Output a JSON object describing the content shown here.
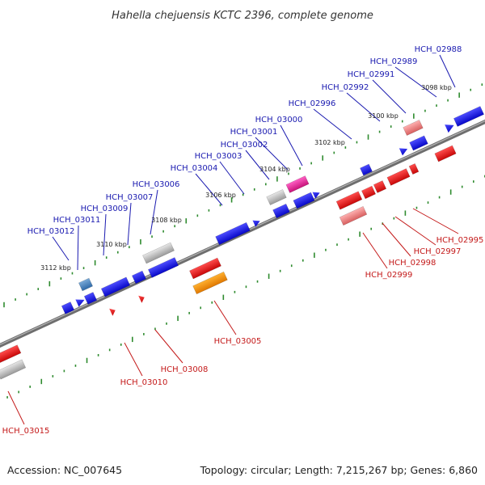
{
  "title": "Hahella chejuensis KCTC 2396, complete genome",
  "footer": {
    "accession": "Accession: NC_007645",
    "summary": "Topology: circular; Length: 7,215,267 bp; Genes: 6,860"
  },
  "scale_labels": [
    "3098 kbp",
    "3100 kbp",
    "3102 kbp",
    "3104 kbp",
    "3106 kbp",
    "3108 kbp",
    "3110 kbp",
    "3112 kbp"
  ],
  "upper_strand_labels": [
    "HCH_02988",
    "HCH_02989",
    "HCH_02991",
    "HCH_02992",
    "HCH_02996",
    "HCH_03000",
    "HCH_03001",
    "HCH_03002",
    "HCH_03003",
    "HCH_03004",
    "HCH_03006",
    "HCH_03007",
    "HCH_03009",
    "HCH_03011",
    "HCH_03012"
  ],
  "lower_strand_labels": [
    "HCH_02995",
    "HCH_02997",
    "HCH_02998",
    "HCH_02999",
    "HCH_03005",
    "HCH_03008",
    "HCH_03010",
    "HCH_03015"
  ],
  "colors": {
    "forward_gene": "#1515e6",
    "reverse_gene": "#e61515",
    "upper_label": "#1a1ab0",
    "lower_label": "#c41a1a",
    "backbone": "#7a7a7a",
    "ticks": "#2e8b2e"
  }
}
